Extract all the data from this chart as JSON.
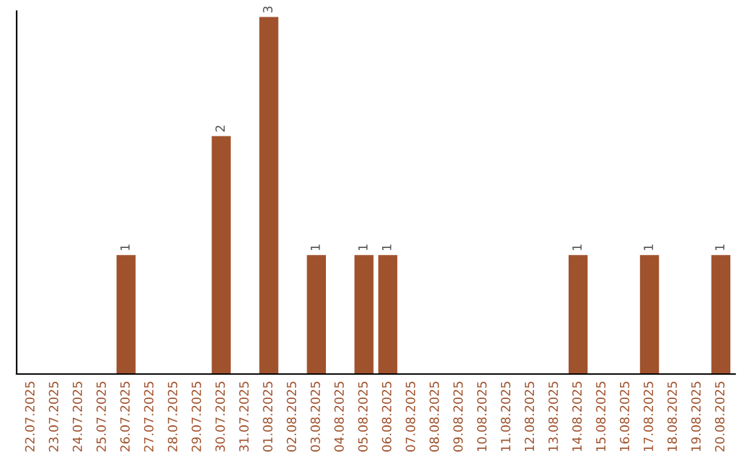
{
  "chart_data": {
    "type": "bar",
    "categories": [
      "22.07.2025",
      "23.07.2025",
      "24.07.2025",
      "25.07.2025",
      "26.07.2025",
      "27.07.2025",
      "28.07.2025",
      "29.07.2025",
      "30.07.2025",
      "31.07.2025",
      "01.08.2025",
      "02.08.2025",
      "03.08.2025",
      "04.08.2025",
      "05.08.2025",
      "06.08.2025",
      "07.08.2025",
      "08.08.2025",
      "09.08.2025",
      "10.08.2025",
      "11.08.2025",
      "12.08.2025",
      "13.08.2025",
      "14.08.2025",
      "15.08.2025",
      "16.08.2025",
      "17.08.2025",
      "18.08.2025",
      "19.08.2025",
      "20.08.2025"
    ],
    "values": [
      0,
      0,
      0,
      0,
      1,
      0,
      0,
      0,
      2,
      0,
      3,
      0,
      1,
      0,
      1,
      1,
      0,
      0,
      0,
      0,
      0,
      0,
      0,
      1,
      0,
      0,
      1,
      0,
      0,
      1
    ],
    "color": "#a0522d",
    "ylim": [
      0,
      3.05
    ],
    "value_labels": [
      null,
      null,
      null,
      null,
      "1",
      null,
      null,
      null,
      "2",
      null,
      "3",
      null,
      "1",
      null,
      "1",
      "1",
      null,
      null,
      null,
      null,
      null,
      null,
      null,
      "1",
      null,
      null,
      "1",
      null,
      null,
      "1"
    ],
    "tick_labels": "x",
    "grid": false,
    "legend": false
  }
}
